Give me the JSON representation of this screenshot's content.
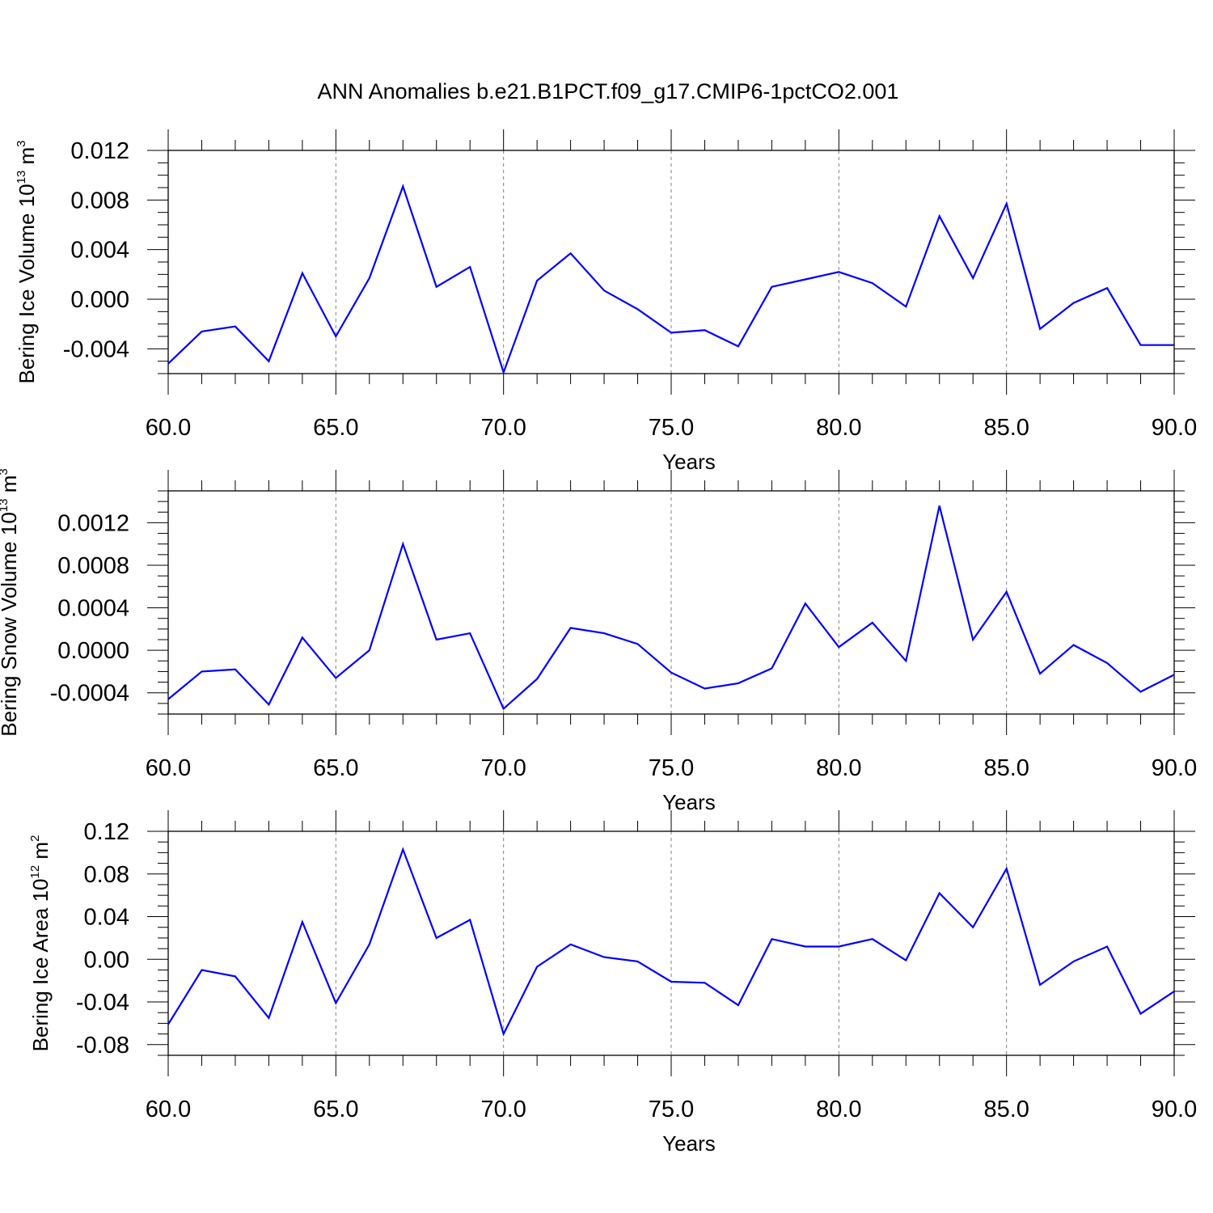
{
  "title": "ANN Anomalies b.e21.B1PCT.f09_g17.CMIP6-1pctCO2.001",
  "colors": {
    "series": "#0000ff",
    "axes": "#000000",
    "grid": "#808080"
  },
  "chart_data": [
    {
      "type": "line",
      "ylabel": {
        "text": "Bering Ice Volume 10",
        "sup": "13",
        "unit": " m",
        "unit_sup": "3"
      },
      "xlabel": "Years",
      "xlim": [
        60,
        90
      ],
      "ylim": [
        -0.006,
        0.012
      ],
      "xticks": [
        "60.0",
        "65.0",
        "70.0",
        "75.0",
        "80.0",
        "85.0",
        "90.0"
      ],
      "yticks": [
        "0.012",
        "0.008",
        "0.004",
        "0.000",
        "-0.004"
      ],
      "ytick_values": [
        0.012,
        0.008,
        0.004,
        0.0,
        -0.004
      ],
      "grid": "vertical dashed at major x ticks",
      "x": [
        60,
        61,
        62,
        63,
        64,
        65,
        66,
        67,
        68,
        69,
        70,
        71,
        72,
        73,
        74,
        75,
        76,
        77,
        78,
        79,
        80,
        81,
        82,
        83,
        84,
        85,
        86,
        87,
        88,
        89,
        90
      ],
      "values": [
        -0.0052,
        -0.0026,
        -0.0022,
        -0.005,
        0.0021,
        -0.003,
        0.0017,
        0.0091,
        0.001,
        0.0026,
        -0.0059,
        0.0015,
        0.0037,
        0.0007,
        -0.0008,
        -0.0027,
        -0.0025,
        -0.0038,
        0.001,
        0.0016,
        0.0022,
        0.0013,
        -0.0006,
        0.0067,
        0.0017,
        0.0077,
        -0.0024,
        -0.0003,
        0.0009,
        -0.0037,
        -0.0037
      ]
    },
    {
      "type": "line",
      "ylabel": {
        "text": "Bering Snow Volume 10",
        "sup": "13",
        "unit": " m",
        "unit_sup": "3"
      },
      "xlabel": "Years",
      "xlim": [
        60,
        90
      ],
      "ylim": [
        -0.0006,
        0.0015
      ],
      "xticks": [
        "60.0",
        "65.0",
        "70.0",
        "75.0",
        "80.0",
        "85.0",
        "90.0"
      ],
      "yticks": [
        "0.0012",
        "0.0008",
        "0.0004",
        "0.0000",
        "-0.0004"
      ],
      "ytick_values": [
        0.0012,
        0.0008,
        0.0004,
        0.0,
        -0.0004
      ],
      "grid": "vertical dashed at major x ticks",
      "x": [
        60,
        61,
        62,
        63,
        64,
        65,
        66,
        67,
        68,
        69,
        70,
        71,
        72,
        73,
        74,
        75,
        76,
        77,
        78,
        79,
        80,
        81,
        82,
        83,
        84,
        85,
        86,
        87,
        88,
        89,
        90
      ],
      "values": [
        -0.00046,
        -0.0002,
        -0.00018,
        -0.00051,
        0.00012,
        -0.00026,
        0.0,
        0.001,
        0.0001,
        0.00016,
        -0.00055,
        -0.00027,
        0.00021,
        0.00016,
        6e-05,
        -0.00021,
        -0.00036,
        -0.00031,
        -0.00017,
        0.00044,
        3e-05,
        0.00026,
        -0.0001,
        0.00136,
        0.0001,
        0.00055,
        -0.00022,
        5e-05,
        -0.00012,
        -0.00039,
        -0.00023
      ]
    },
    {
      "type": "line",
      "ylabel": {
        "text": "Bering Ice Area 10",
        "sup": "12",
        "unit": " m",
        "unit_sup": "2"
      },
      "xlabel": "Years",
      "xlim": [
        60,
        90
      ],
      "ylim": [
        -0.09,
        0.12
      ],
      "xticks": [
        "60.0",
        "65.0",
        "70.0",
        "75.0",
        "80.0",
        "85.0",
        "90.0"
      ],
      "yticks": [
        "0.12",
        "0.08",
        "0.04",
        "0.00",
        "-0.04",
        "-0.08"
      ],
      "ytick_values": [
        0.12,
        0.08,
        0.04,
        0.0,
        -0.04,
        -0.08
      ],
      "grid": "vertical dashed at major x ticks",
      "x": [
        60,
        61,
        62,
        63,
        64,
        65,
        66,
        67,
        68,
        69,
        70,
        71,
        72,
        73,
        74,
        75,
        76,
        77,
        78,
        79,
        80,
        81,
        82,
        83,
        84,
        85,
        86,
        87,
        88,
        89,
        90
      ],
      "values": [
        -0.061,
        -0.01,
        -0.016,
        -0.055,
        0.035,
        -0.041,
        0.014,
        0.103,
        0.02,
        0.037,
        -0.07,
        -0.007,
        0.014,
        0.002,
        -0.002,
        -0.021,
        -0.022,
        -0.043,
        0.019,
        0.012,
        0.012,
        0.019,
        -0.001,
        0.062,
        0.03,
        0.085,
        -0.024,
        -0.002,
        0.012,
        -0.051,
        -0.03
      ]
    }
  ]
}
